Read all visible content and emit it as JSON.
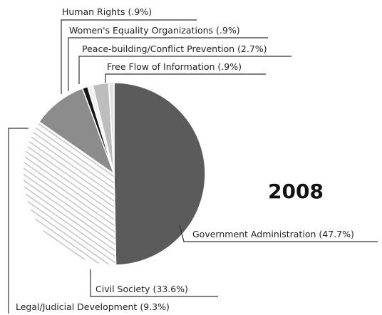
{
  "chart_data": {
    "type": "pie",
    "title": "2008",
    "categories": [
      "Government Administration",
      "Civil Society",
      "Legal/Judicial Development",
      "Human Rights",
      "Women's Equality Organizations",
      "Peace-building/Conflict Prevention",
      "Free Flow of Information"
    ],
    "values": [
      47.7,
      33.6,
      9.3,
      0.9,
      0.9,
      2.7,
      0.9
    ],
    "value_labels": [
      "(47.7%)",
      "(33.6%)",
      "(9.3%)",
      "(.9%)",
      "(.9%)",
      "(2.7%)",
      "(.9%)"
    ],
    "colors": [
      "#5b5b5b",
      "#c8c8c8",
      "#8c8c8c",
      "#151515",
      "#f2f2f2",
      "#bdbdbd",
      "#e2e2e2"
    ],
    "patterns": [
      "solid",
      "hatch",
      "solid",
      "solid",
      "solid",
      "solid",
      "solid"
    ]
  }
}
